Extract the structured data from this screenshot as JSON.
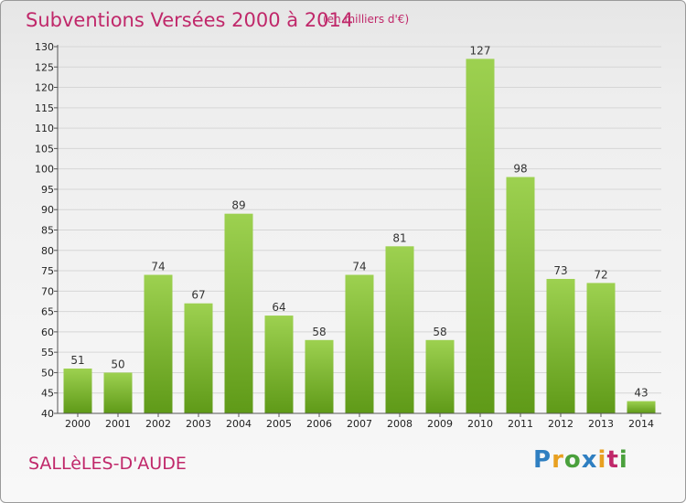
{
  "title": "Subventions Versées 2000 à 2014",
  "unit_note": "(en milliers d'€)",
  "commune": "SALLèLES-D'AUDE",
  "logo": {
    "text": "Proxiti",
    "colors": [
      "#2f7fc1",
      "#e8a020",
      "#4aa03c",
      "#2f7fc1",
      "#e8a020",
      "#c0286a",
      "#4aa03c"
    ]
  },
  "colors": {
    "bar_top": "#9dd150",
    "bar_bottom": "#5f9a18",
    "accent": "#c0286a"
  },
  "chart_data": {
    "type": "bar",
    "categories": [
      "2000",
      "2001",
      "2002",
      "2003",
      "2004",
      "2005",
      "2006",
      "2007",
      "2008",
      "2009",
      "2010",
      "2011",
      "2012",
      "2013",
      "2014"
    ],
    "values": [
      51,
      50,
      74,
      67,
      89,
      64,
      58,
      74,
      81,
      58,
      127,
      98,
      73,
      72,
      43
    ],
    "ylim": [
      40,
      130
    ],
    "yticks": [
      40,
      45,
      50,
      55,
      60,
      65,
      70,
      75,
      80,
      85,
      90,
      95,
      100,
      105,
      110,
      115,
      120,
      125,
      130
    ],
    "grid": true
  }
}
